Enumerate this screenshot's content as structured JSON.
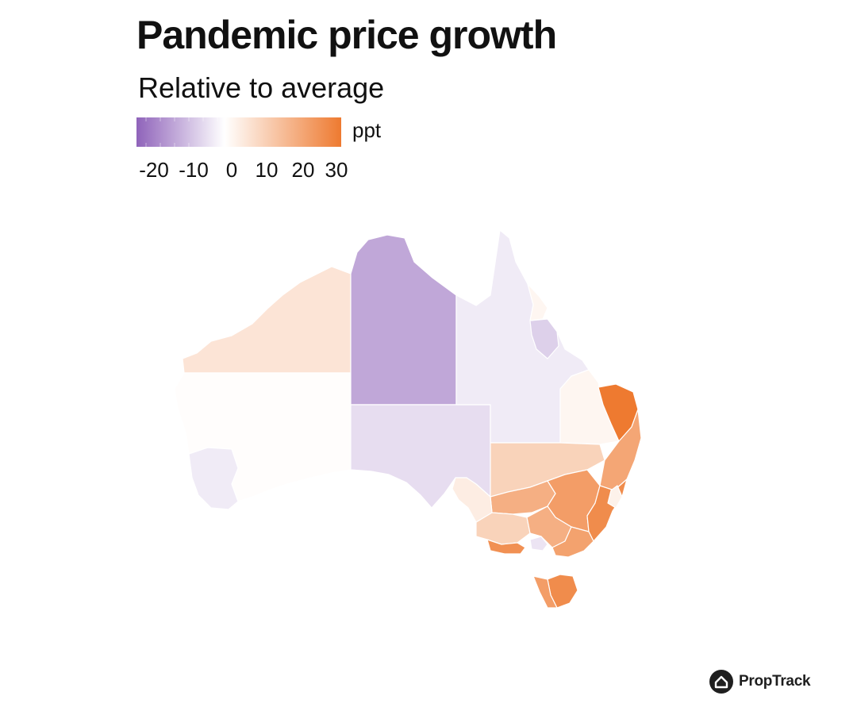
{
  "header": {
    "title": "Pandemic price growth",
    "subtitle": "Relative to average"
  },
  "legend": {
    "unit": "ppt",
    "ticks": [
      "-20",
      "-10",
      "0",
      "10",
      "20",
      "30"
    ],
    "colors": {
      "negative": "#8f63ba",
      "neutral": "#ffffff",
      "positive": "#ee7a30"
    }
  },
  "regions": [
    {
      "name": "Western Australia - Outback (North)",
      "value": 6
    },
    {
      "name": "Western Australia - Outback (South)",
      "value": 0.5
    },
    {
      "name": "Perth",
      "value": -3
    },
    {
      "name": "Northern Territory - Outback",
      "value": -13
    },
    {
      "name": "South Australia - Outback",
      "value": -5
    },
    {
      "name": "Queensland - Outback",
      "value": -3
    },
    {
      "name": "Townsville",
      "value": -7
    },
    {
      "name": "Cairns",
      "value": 2
    },
    {
      "name": "Darling Downs - Maranoa",
      "value": 2
    },
    {
      "name": "Gold Coast",
      "value": 30
    },
    {
      "name": "New South Wales - Far West and Orana",
      "value": 10
    },
    {
      "name": "Coffs Harbour - Grafton",
      "value": 20
    },
    {
      "name": "Murray",
      "value": 18
    },
    {
      "name": "Capital Region",
      "value": 22
    },
    {
      "name": "Southern Highlands and Shoalhaven",
      "value": 26
    },
    {
      "name": "Sydney",
      "value": 3
    },
    {
      "name": "Western Victoria",
      "value": 10
    },
    {
      "name": "Hume",
      "value": 18
    },
    {
      "name": "Gippsland",
      "value": 21
    },
    {
      "name": "Melbourne",
      "value": -4
    },
    {
      "name": "Warrnambool and South West",
      "value": 25
    },
    {
      "name": "Adelaide",
      "value": 4
    },
    {
      "name": "Tasmania - South East",
      "value": 26
    },
    {
      "name": "Tasmania - West and North West",
      "value": 22
    }
  ],
  "branding": {
    "name": "PropTrack",
    "icon": "house-icon"
  }
}
